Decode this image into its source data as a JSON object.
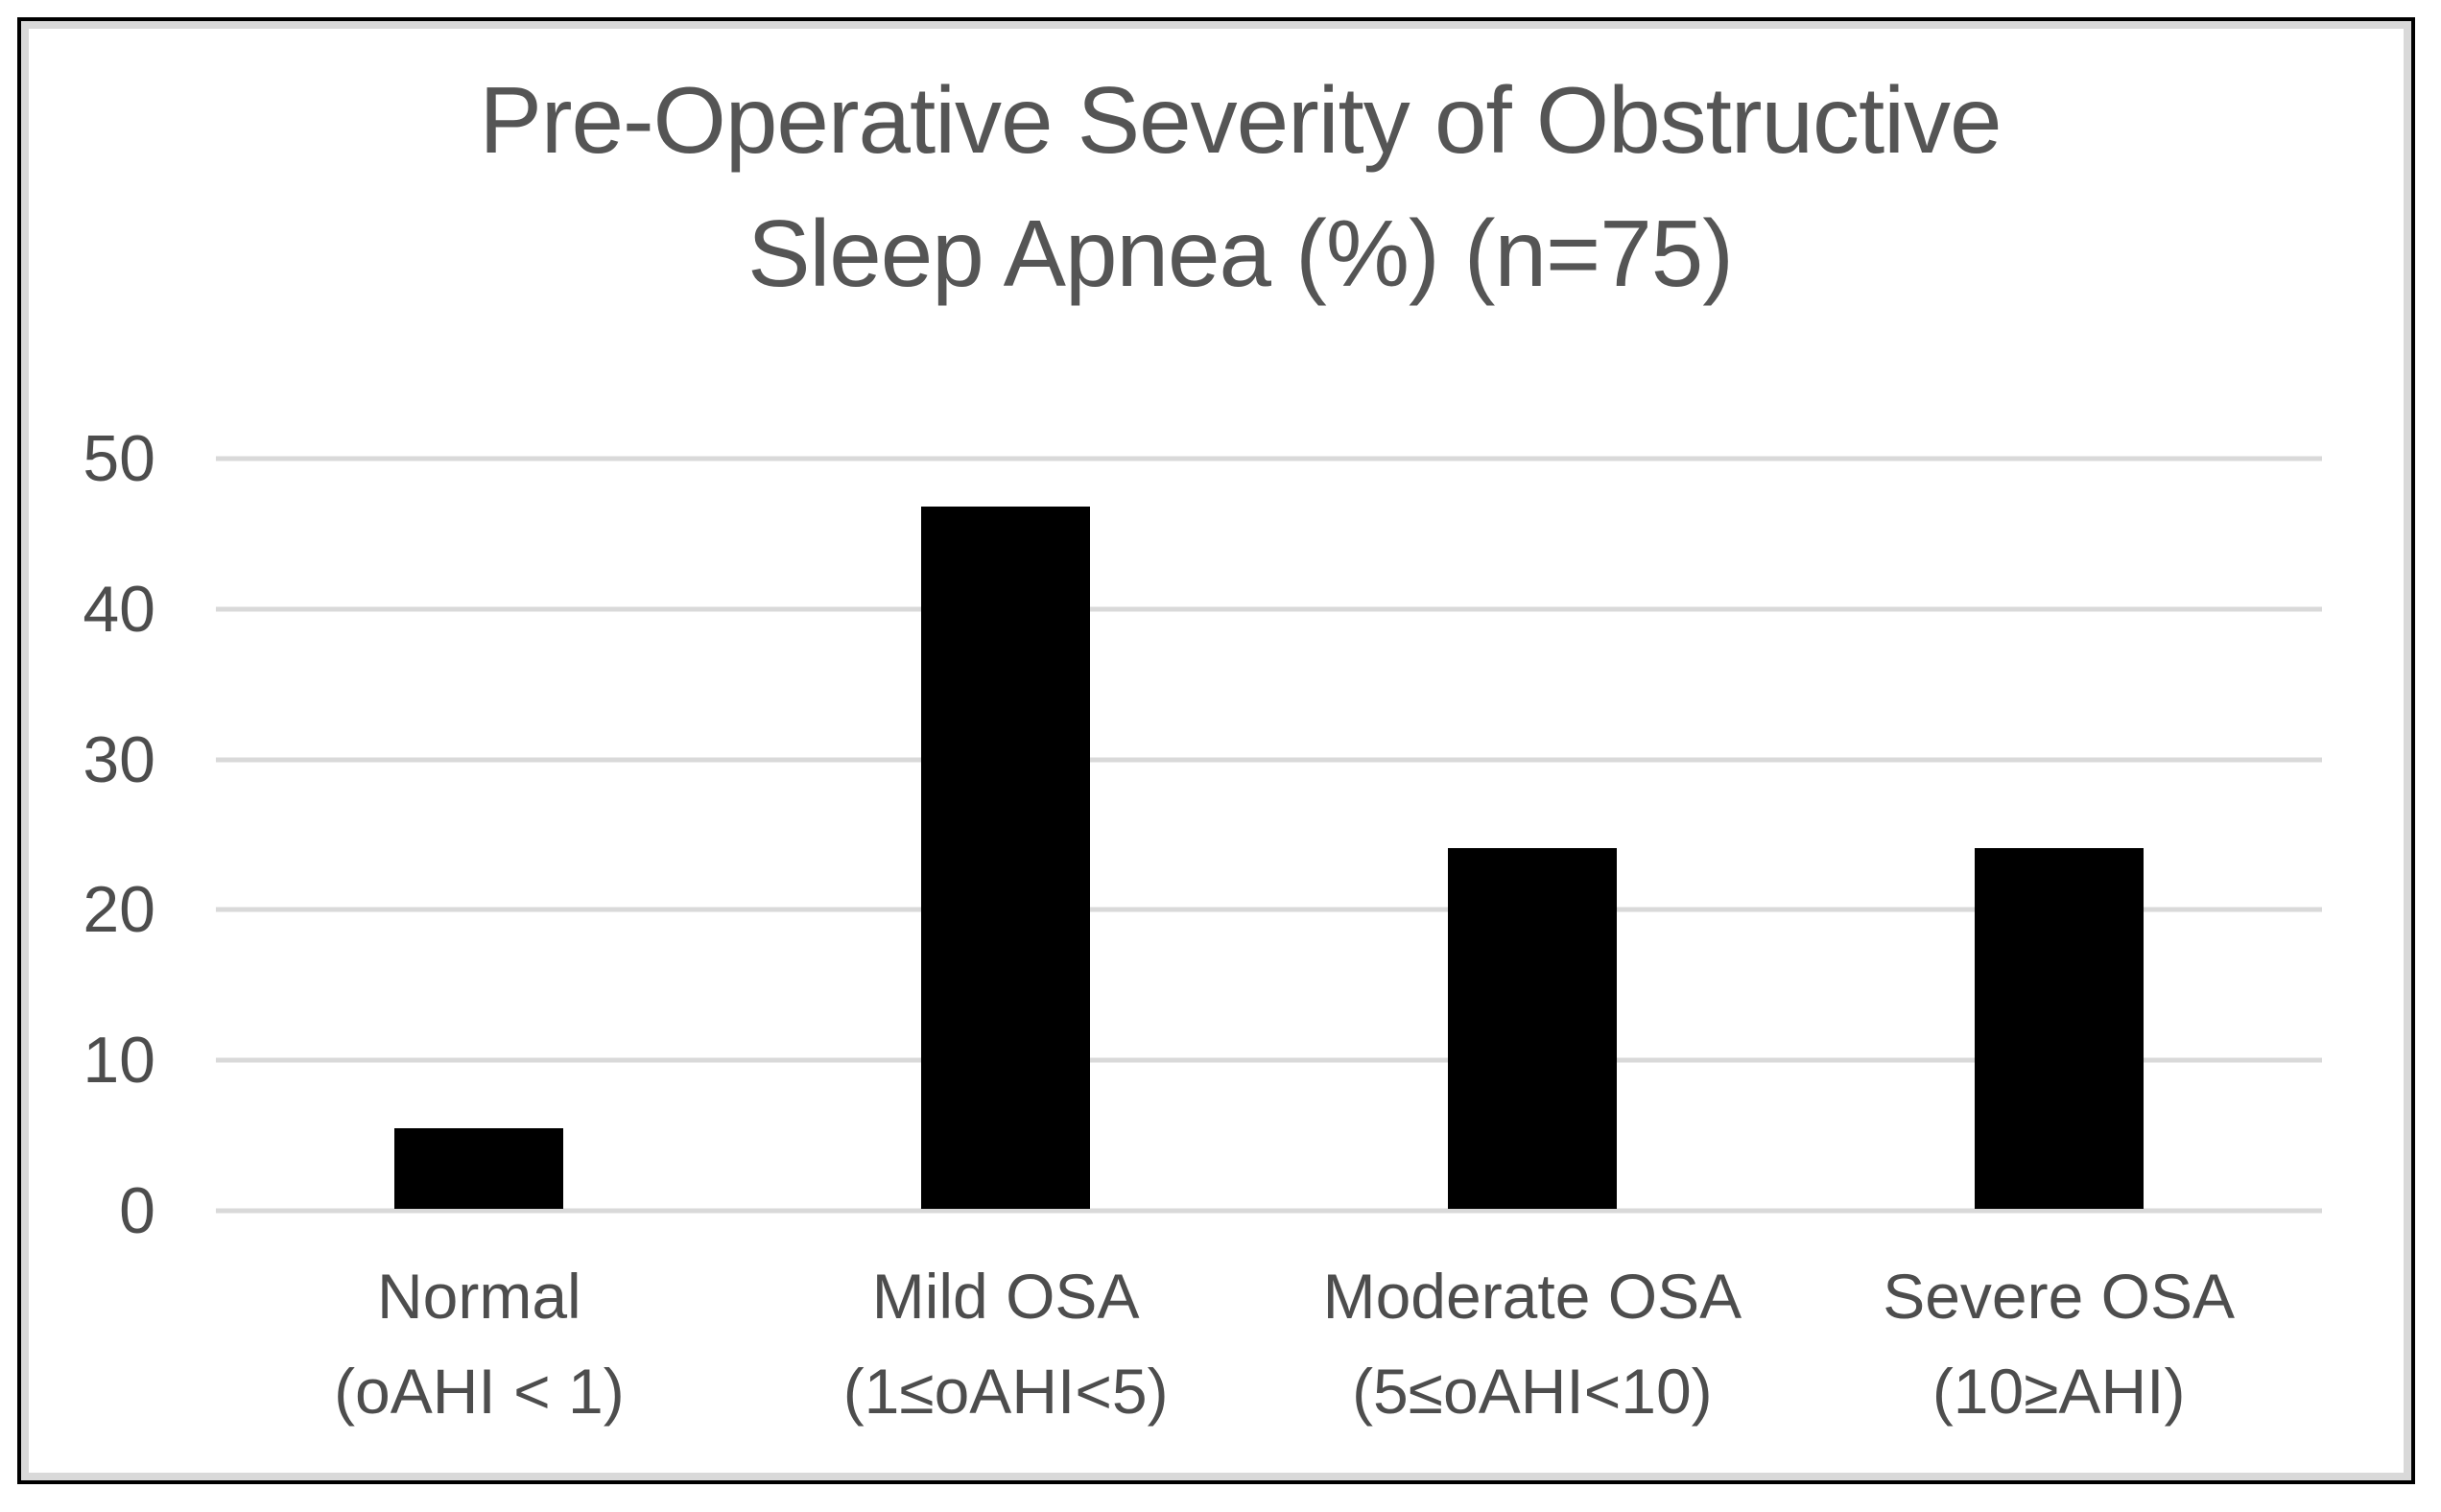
{
  "chart_data": {
    "type": "bar",
    "title": "Pre-Operative Severity of Obstructive Sleep Apnea (%) (n=75)",
    "title_lines": [
      "Pre-Operative Severity of Obstructive",
      "Sleep Apnea (%) (n=75)"
    ],
    "n_label": "n=75",
    "categories": [
      "Normal (oAHI < 1)",
      "Mild OSA (1≤oAHI<5)",
      "Moderate OSA (5≤oAHI<10)",
      "Severe OSA (10≥AHI)"
    ],
    "category_lines": [
      [
        "Normal",
        "(oAHI < 1)"
      ],
      [
        "Mild OSA",
        "(1≤oAHI<5)"
      ],
      [
        "Moderate OSA",
        "(5≤oAHI<10)"
      ],
      [
        "Severe OSA",
        "(10≥AHI)"
      ]
    ],
    "values": [
      5.33,
      46.67,
      24,
      24
    ],
    "unit": "%",
    "ylim": [
      0,
      50
    ],
    "yticks": [
      50,
      40,
      30,
      20,
      10,
      0
    ],
    "grid": true,
    "legend": "none",
    "bar_color": "#000000",
    "gridline_color": "#d9d9d9",
    "text_color": "#4d4d4d",
    "title_color": "#555555",
    "frame_border_color": "#000000",
    "frame_inner_band_color": "#d9d9d9"
  }
}
